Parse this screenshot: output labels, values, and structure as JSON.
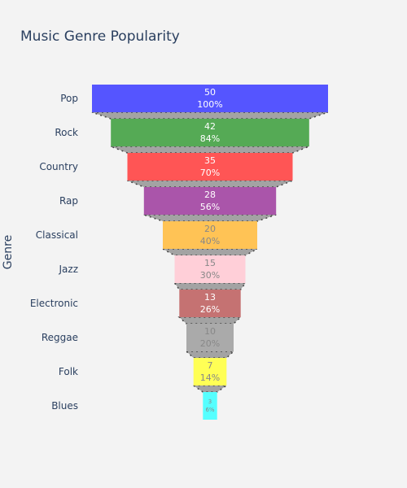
{
  "chart_data": {
    "type": "funnel",
    "title": "Music Genre Popularity",
    "ylabel": "Genre",
    "categories": [
      "Pop",
      "Rock",
      "Country",
      "Rap",
      "Classical",
      "Jazz",
      "Electronic",
      "Reggae",
      "Folk",
      "Blues"
    ],
    "values": [
      50,
      42,
      35,
      28,
      20,
      15,
      13,
      10,
      7,
      3
    ],
    "percent_labels": [
      "100%",
      "84%",
      "70%",
      "56%",
      "40%",
      "30%",
      "26%",
      "20%",
      "14%",
      "6%"
    ],
    "colors": [
      "#5555ff",
      "#55aa55",
      "#ff5555",
      "#aa55aa",
      "#ffc355",
      "#ffcfd8",
      "#c57272",
      "#aaaaaa",
      "#ffff55",
      "#55ffff"
    ],
    "label_colors": [
      "#ffffff",
      "#ffffff",
      "#ffffff",
      "#ffffff",
      "#888888",
      "#888888",
      "#ffffff",
      "#888888",
      "#888888",
      "#888888"
    ],
    "connector_color": "#a3a3a3",
    "background": "#f3f3f3"
  }
}
